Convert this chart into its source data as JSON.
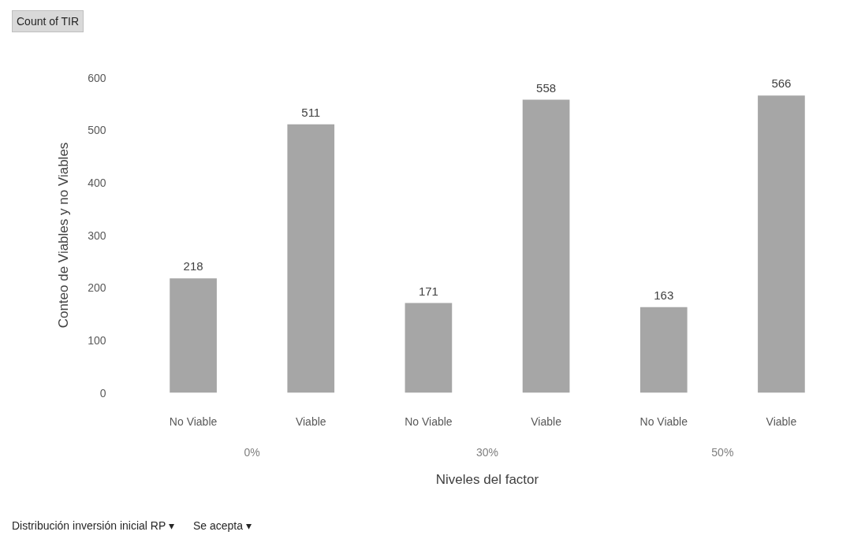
{
  "chart_data": {
    "type": "bar",
    "ylabel": "Conteo de Viables y no Viables",
    "xlabel": "Niveles del factor",
    "categories": [
      "No Viable",
      "Viable",
      "No Viable",
      "Viable",
      "No Viable",
      "Viable"
    ],
    "values": [
      218,
      511,
      171,
      558,
      163,
      566
    ],
    "color": "#a6a6a6",
    "ylim": [
      0,
      600
    ],
    "yticks": [
      0,
      100,
      200,
      300,
      400,
      500,
      600
    ],
    "grid": false,
    "data_labels": true,
    "annotations": [
      "Count of TIR",
      "0%",
      "30%",
      "50%",
      "Distribución inversión inicial RP ▾",
      "Se acepta ▾"
    ]
  }
}
